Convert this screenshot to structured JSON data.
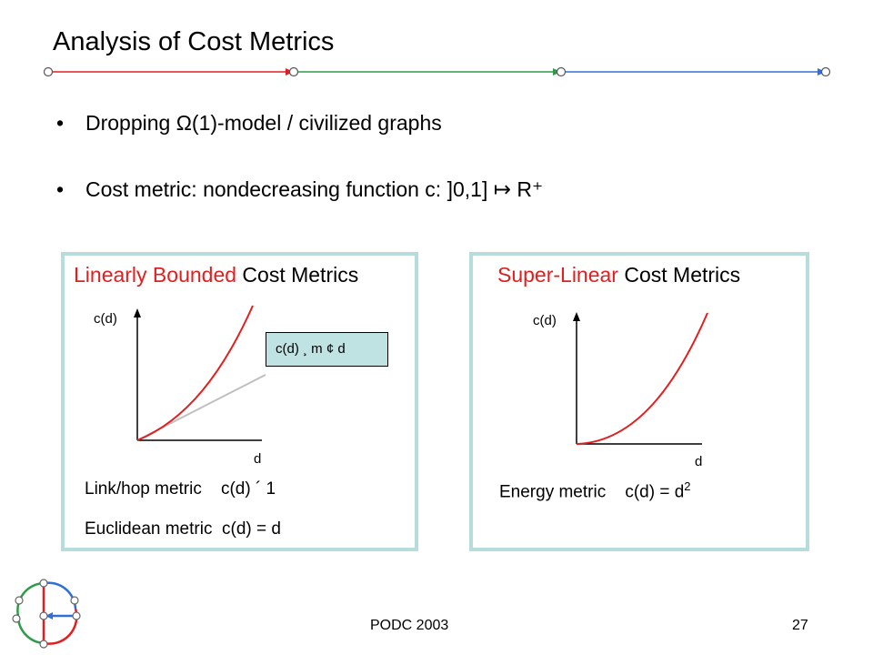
{
  "slide": {
    "title": "Analysis of Cost Metrics",
    "bullets": [
      {
        "bullet": "•",
        "text": "Dropping Ω(1)-model / civilized graphs"
      },
      {
        "bullet": "•",
        "text": "Cost metric: nondecreasing function c: ]0,1] ↦ R⁺"
      }
    ],
    "header_line_colors": [
      "#e02020",
      "#2e9a4a",
      "#2f6fd6"
    ]
  },
  "left_panel": {
    "title_highlight": "Linearly Bounded",
    "title_rest": " Cost Metrics",
    "y_axis_label": "c(d)",
    "x_axis_label": "d",
    "callout": "c(d) ¸ m ¢ d",
    "metric_1": "Link/hop metric    c(d) ´ 1",
    "metric_2": "Euclidean metric  c(d) = d"
  },
  "right_panel": {
    "title_highlight": "Super-Linear",
    "title_rest": " Cost Metrics",
    "y_axis_label": "c(d)",
    "x_axis_label": "d",
    "metric_prefix": "Energy metric    c(d) = d",
    "metric_sup": "2"
  },
  "footer": {
    "conference": "PODC 2003",
    "page_number": "27"
  },
  "colors": {
    "accent_red": "#e02020",
    "box_border": "#b7dcdc",
    "callout_fill": "#bfe3e3",
    "linear_bound_gray": "#c0c0c0"
  }
}
